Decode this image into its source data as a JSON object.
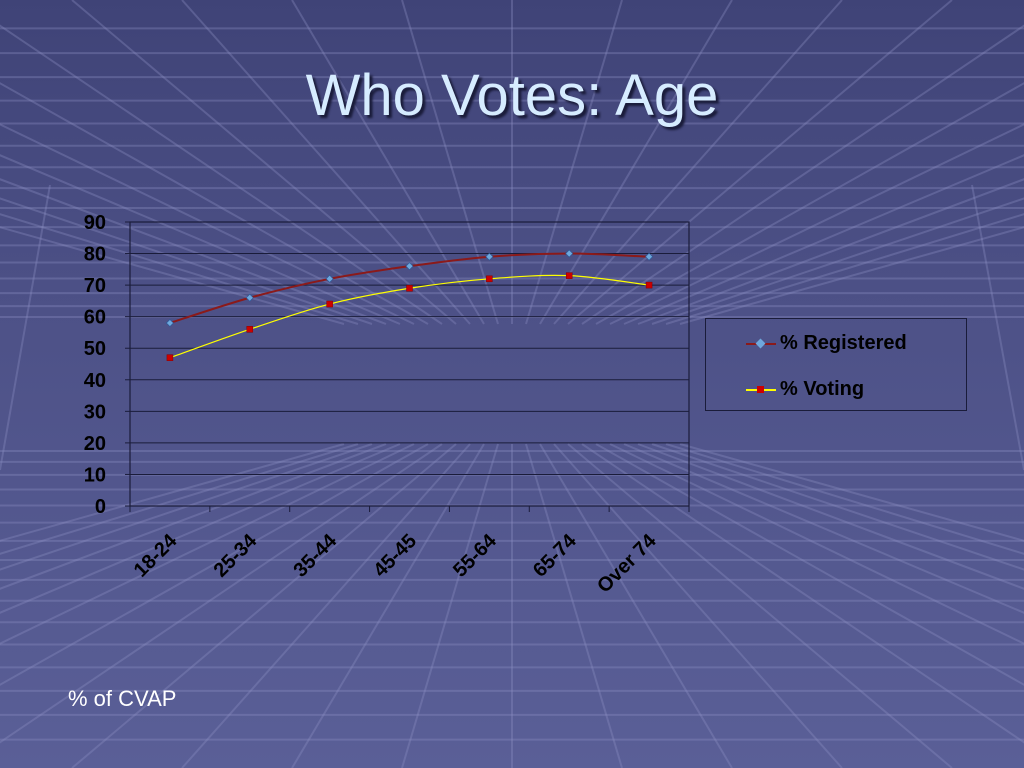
{
  "slide": {
    "title": "Who Votes:  Age",
    "footnote": "% of CVAP"
  },
  "chart_data": {
    "type": "line",
    "categories": [
      "18-24",
      "25-34",
      "35-44",
      "45-45",
      "55-64",
      "65-74",
      "Over 74"
    ],
    "series": [
      {
        "name": "% Registered",
        "values": [
          58,
          66,
          72,
          76,
          79,
          80,
          79
        ],
        "line_color": "#8b1a1a",
        "marker_color": "#6fa8dc",
        "marker": "diamond"
      },
      {
        "name": "% Voting",
        "values": [
          47,
          56,
          64,
          69,
          72,
          73,
          70
        ],
        "line_color": "#ffff00",
        "marker_color": "#cc0000",
        "marker": "square"
      }
    ],
    "ylim": [
      0,
      90
    ],
    "yticks": [
      "0",
      "10",
      "20",
      "30",
      "40",
      "50",
      "60",
      "70",
      "80",
      "90"
    ],
    "grid": true,
    "legend_position": "right"
  },
  "colors": {
    "background": "#4d5187",
    "title": "#d6ecff",
    "gridline": "#1a1c3a"
  }
}
